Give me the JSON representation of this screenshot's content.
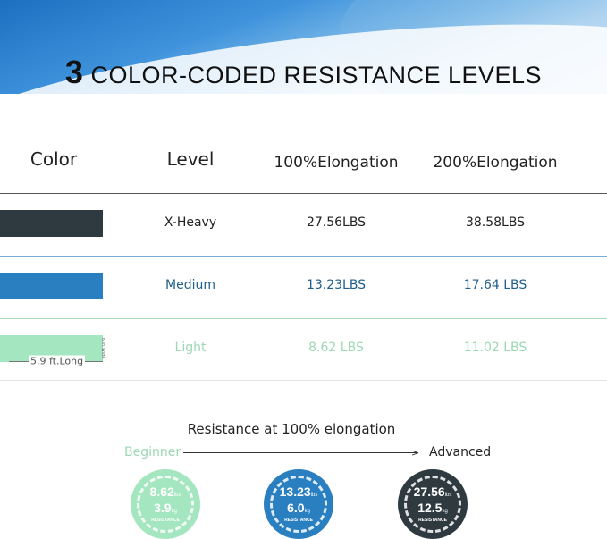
{
  "title": {
    "number": "3",
    "text": "COLOR-CODED RESISTANCE LEVELS"
  },
  "table": {
    "headers": [
      "Color",
      "Level",
      "100%Elongation",
      "200%Elongation"
    ],
    "rows": [
      {
        "color": "#2f3a40",
        "level": "X-Heavy",
        "e100": "27.56LBS",
        "e200": "38.58LBS",
        "text_color": "#222222"
      },
      {
        "color": "#2a7fc1",
        "level": "Medium",
        "e100": "13.23LBS",
        "e200": "17.64 LBS",
        "text_color": "#1f5f8b"
      },
      {
        "color": "#a4e6bf",
        "level": "Light",
        "e100": "8.62 LBS",
        "e200": "11.02 LBS",
        "text_color": "#9bd8b3"
      }
    ],
    "dimensions": {
      "length": "5.9 ft.Long",
      "width": "6 in.Wide"
    }
  },
  "scale": {
    "title": "Resistance at 100% elongation",
    "start": "Beginner",
    "end": "Advanced",
    "badges": [
      {
        "lbs": "8.62",
        "lbs_unit": "lbs",
        "kg": "3.9",
        "kg_unit": "kg",
        "label": "RESISTANCE",
        "color": "#a4e6bf"
      },
      {
        "lbs": "13.23",
        "lbs_unit": "lbs",
        "kg": "6.0",
        "kg_unit": "kg",
        "label": "RESISTANCE",
        "color": "#2a7fc1"
      },
      {
        "lbs": "27.56",
        "lbs_unit": "lbs",
        "kg": "12.5",
        "kg_unit": "kg",
        "label": "RESISTANCE",
        "color": "#2f3a40"
      }
    ]
  }
}
